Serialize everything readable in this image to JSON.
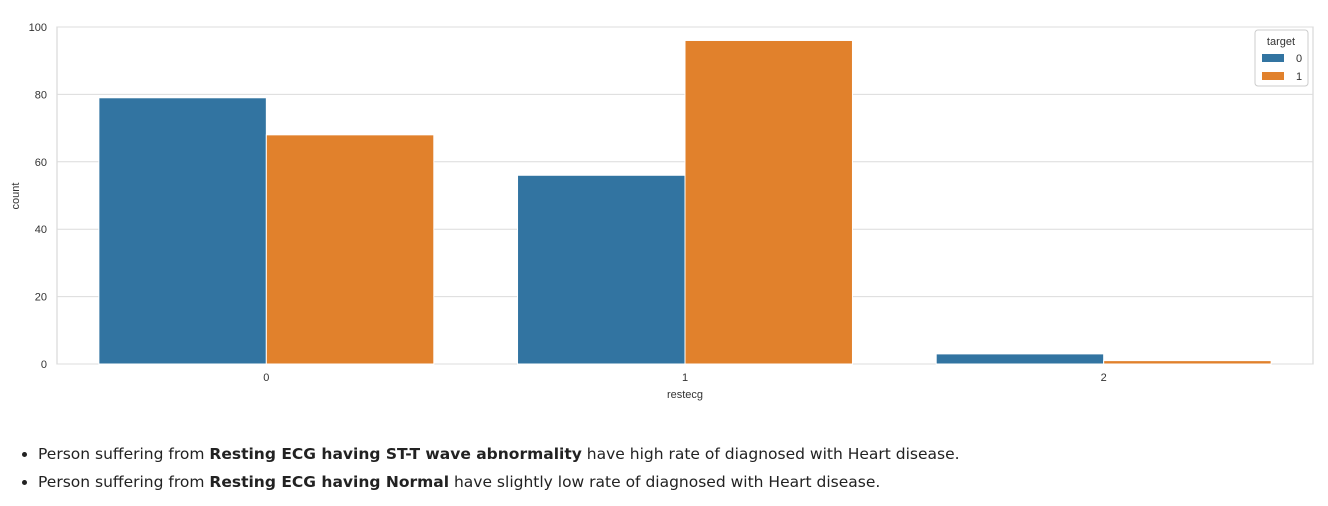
{
  "chart_data": {
    "type": "bar",
    "xlabel": "restecg",
    "ylabel": "count",
    "categories": [
      "0",
      "1",
      "2"
    ],
    "ylim": [
      0,
      100
    ],
    "yticks": [
      0,
      20,
      40,
      60,
      80,
      100
    ],
    "grid": true,
    "legend": {
      "title": "target",
      "placement": "top-right"
    },
    "series": [
      {
        "name": "0",
        "color": "#3274a1",
        "values": [
          79,
          56,
          3
        ]
      },
      {
        "name": "1",
        "color": "#e1812c",
        "values": [
          68,
          96,
          1
        ]
      }
    ]
  },
  "bullets": [
    {
      "prefix": "Person suffering from ",
      "bold": "Resting ECG having ST-T wave abnormality",
      "suffix": " have high rate of diagnosed with Heart disease."
    },
    {
      "prefix": "Person suffering from ",
      "bold": "Resting ECG having Normal",
      "suffix": " have slightly low rate of diagnosed with Heart disease."
    }
  ]
}
